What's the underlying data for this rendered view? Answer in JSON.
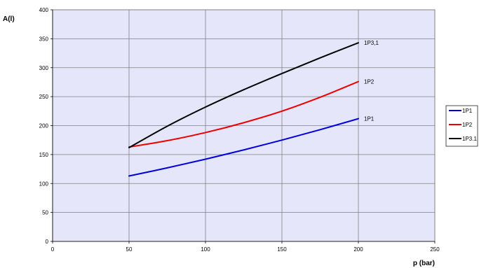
{
  "chart_data": {
    "type": "line",
    "xlabel": "p (bar)",
    "ylabel": "A(l)",
    "xlim": [
      0,
      250
    ],
    "ylim": [
      0,
      400
    ],
    "xticks": [
      0,
      50,
      100,
      150,
      200,
      250
    ],
    "yticks": [
      0,
      50,
      100,
      150,
      200,
      250,
      300,
      350,
      400
    ],
    "grid": true,
    "legend_position": "right",
    "plot_background": "#e6e6fa",
    "series": [
      {
        "name": "1P1",
        "end_label": "1P1",
        "color": "#0000dd",
        "x": [
          50,
          75,
          100,
          125,
          150,
          175,
          200
        ],
        "y": [
          113,
          127,
          142,
          158,
          175,
          193,
          212
        ]
      },
      {
        "name": "1P2",
        "end_label": "1P2",
        "color": "#ee0000",
        "x": [
          50,
          75,
          100,
          125,
          150,
          175,
          200
        ],
        "y": [
          163,
          174,
          188,
          205,
          225,
          249,
          276
        ]
      },
      {
        "name": "1P3.1",
        "end_label": "1P3,1",
        "color": "#000000",
        "x": [
          50,
          75,
          100,
          125,
          150,
          175,
          200
        ],
        "y": [
          162,
          199,
          232,
          262,
          290,
          317,
          343
        ]
      }
    ]
  }
}
